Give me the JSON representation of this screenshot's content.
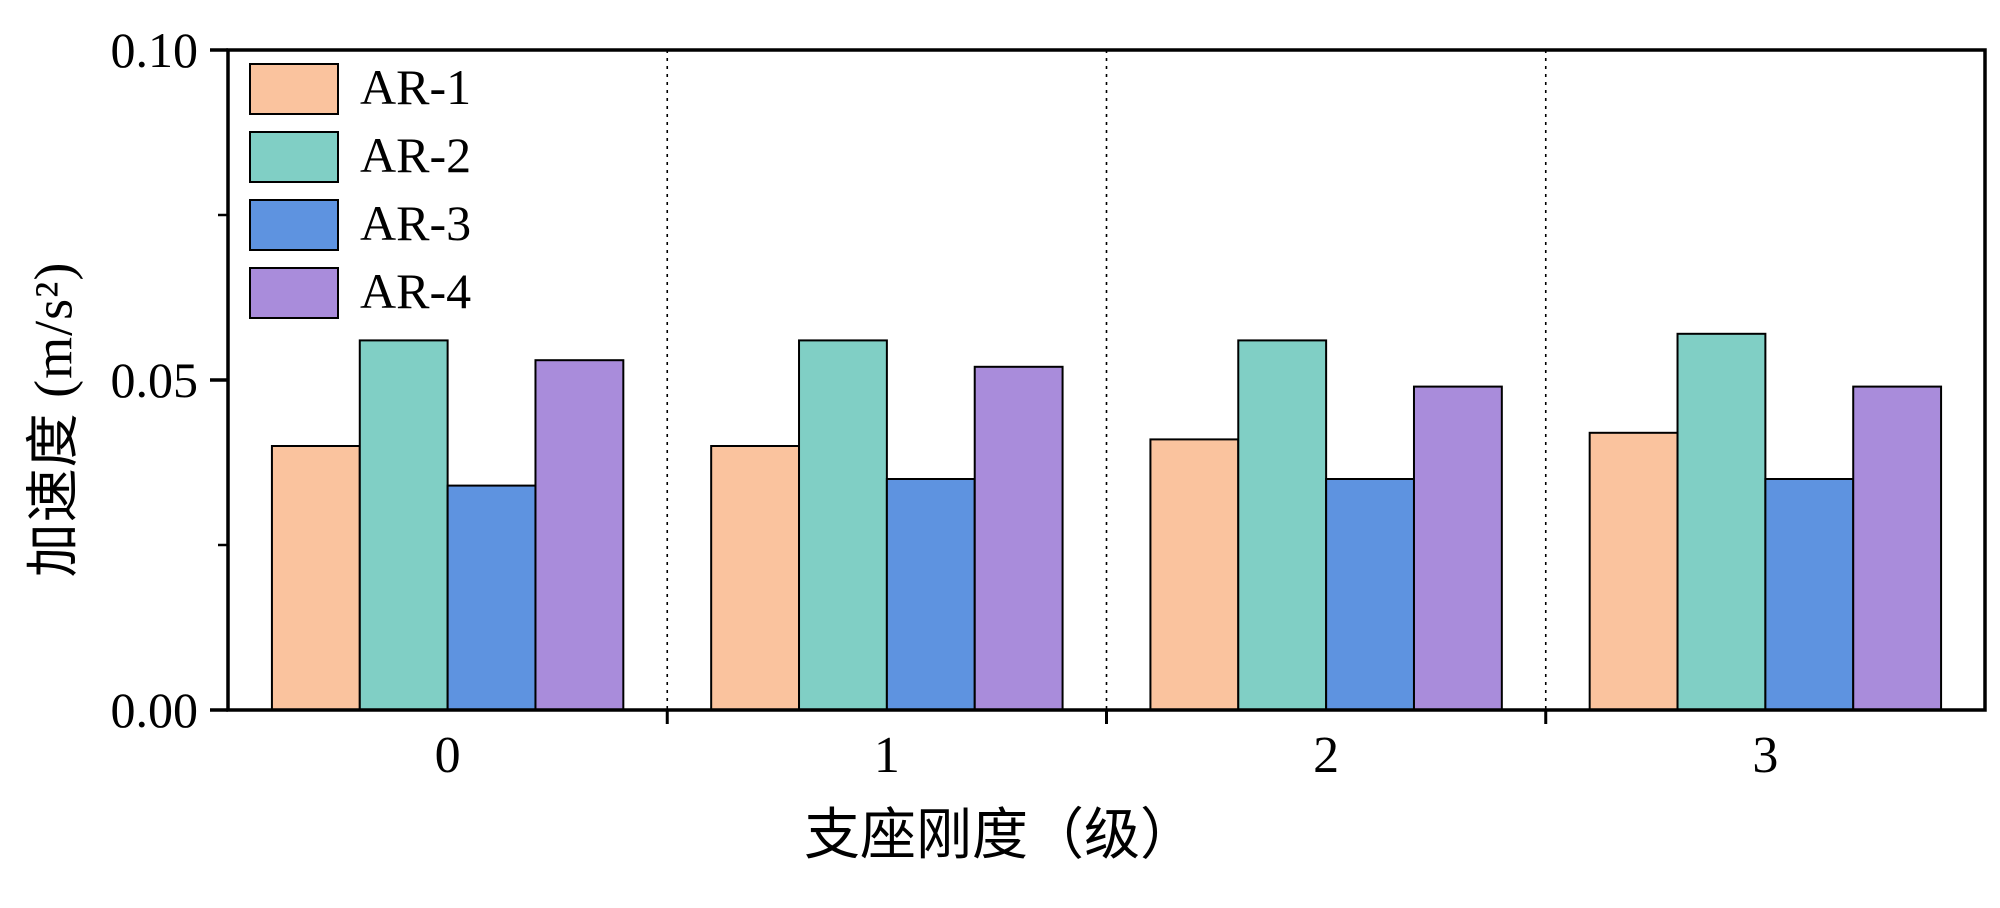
{
  "chart_data": {
    "type": "bar",
    "title": "",
    "xlabel": "支座刚度（级）",
    "ylabel": "加速度 (m/s²)",
    "categories": [
      "0",
      "1",
      "2",
      "3"
    ],
    "series": [
      {
        "name": "AR-1",
        "color": "#FAC39E",
        "values": [
          0.04,
          0.04,
          0.041,
          0.042
        ]
      },
      {
        "name": "AR-2",
        "color": "#80CFC5",
        "values": [
          0.056,
          0.056,
          0.056,
          0.057
        ]
      },
      {
        "name": "AR-3",
        "color": "#5E93E0",
        "values": [
          0.034,
          0.035,
          0.035,
          0.035
        ]
      },
      {
        "name": "AR-4",
        "color": "#A98CDB",
        "values": [
          0.053,
          0.052,
          0.049,
          0.049
        ]
      }
    ],
    "ylim": [
      0,
      0.1
    ],
    "yticks": [
      0.0,
      0.05,
      0.1
    ],
    "ytick_labels": [
      "0.00",
      "0.05",
      "0.10"
    ],
    "minor_yticks": [
      0.025,
      0.075
    ],
    "legend_position": "top-left",
    "grid": "dotted-vertical-separators",
    "bar_edge_color": "#000000",
    "axis_color": "#000000"
  }
}
